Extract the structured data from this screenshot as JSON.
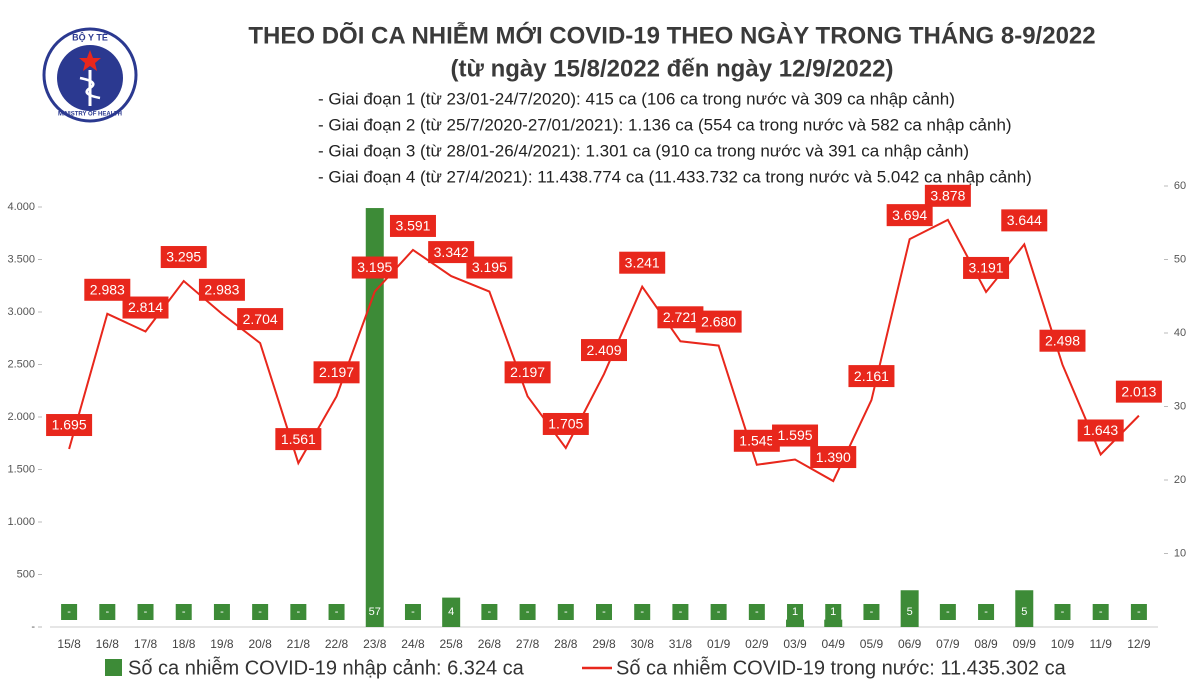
{
  "chart_data": {
    "type": "combo",
    "title": "THEO DÕI CA NHIỄM MỚI COVID-19 THEO NGÀY TRONG THÁNG 8-9/2022",
    "subtitle": "(từ ngày 15/8/2022 đến ngày 12/9/2022)",
    "annotations": [
      "- Giai đoạn 1 (từ 23/01-24/7/2020): 415 ca (106 ca trong nước và 309 ca nhập cảnh)",
      "- Giai đoạn 2 (từ 25/7/2020-27/01/2021): 1.136 ca (554 ca trong nước và 582 ca nhập cảnh)",
      "- Giai đoạn 3 (từ 28/01-26/4/2021): 1.301 ca (910 ca trong nước và 391 ca nhập cảnh)",
      "- Giai đoạn 4 (từ 27/4/2021): 11.438.774 ca (11.433.732 ca trong nước và 5.042 ca nhập cảnh)"
    ],
    "logo_texts": [
      "BỘ Y TẾ",
      "MINISTRY OF HEALTH"
    ],
    "categories": [
      "15/8",
      "16/8",
      "17/8",
      "18/8",
      "19/8",
      "20/8",
      "21/8",
      "22/8",
      "23/8",
      "24/8",
      "25/8",
      "26/8",
      "27/8",
      "28/8",
      "29/8",
      "30/8",
      "31/8",
      "01/9",
      "02/9",
      "03/9",
      "04/9",
      "05/9",
      "06/9",
      "07/9",
      "08/9",
      "09/9",
      "10/9",
      "11/9",
      "12/9"
    ],
    "series": [
      {
        "name": "Số ca nhiễm COVID-19 nhập cảnh: 6.324 ca",
        "type": "bar",
        "axis": "y2",
        "color": "#3d8b37",
        "values": [
          0,
          0,
          0,
          0,
          0,
          0,
          0,
          0,
          57,
          0,
          4,
          0,
          0,
          0,
          0,
          0,
          0,
          0,
          0,
          1,
          1,
          0,
          5,
          0,
          0,
          5,
          0,
          0,
          0
        ],
        "value_labels": [
          "-",
          "-",
          "-",
          "-",
          "-",
          "-",
          "-",
          "-",
          "57",
          "-",
          "4",
          "-",
          "-",
          "-",
          "-",
          "-",
          "-",
          "-",
          "-",
          "1",
          "1",
          "-",
          "5",
          "-",
          "-",
          "5",
          "-",
          "-",
          "-"
        ]
      },
      {
        "name": "Số ca nhiễm COVID-19 trong nước: 11.435.302 ca",
        "type": "line",
        "color": "#e8271c",
        "values": [
          1695,
          2983,
          2814,
          3295,
          2983,
          2704,
          1561,
          2197,
          3195,
          3591,
          3342,
          3195,
          2197,
          1705,
          2409,
          3241,
          2721,
          2680,
          1545,
          1595,
          1390,
          2161,
          3694,
          3878,
          3191,
          3644,
          2498,
          1643,
          2013
        ],
        "value_labels": [
          "1.695",
          "2.983",
          "2.814",
          "3.295",
          "2.983",
          "2.704",
          "1.561",
          "2.197",
          "3.195",
          "3.591",
          "3.342",
          "3.195",
          "2.197",
          "1.705",
          "2.409",
          "3.241",
          "2.721",
          "2.680",
          "1.545",
          "1.595",
          "1.390",
          "2.161",
          "3.694",
          "3.878",
          "3.191",
          "3.644",
          "2.498",
          "1.643",
          "2.013"
        ]
      }
    ],
    "ylim": [
      0,
      4200
    ],
    "yticks": [
      {
        "value": 0,
        "label": "-"
      },
      500,
      {
        "value": 1000,
        "label": "1.000"
      },
      {
        "value": 1500,
        "label": "1.500"
      },
      {
        "value": 2000,
        "label": "2.000"
      },
      {
        "value": 2500,
        "label": "2.500"
      },
      {
        "value": 3000,
        "label": "3.000"
      },
      {
        "value": 3500,
        "label": "3.500"
      },
      {
        "value": 4000,
        "label": "4.000"
      }
    ],
    "y2lim": [
      0,
      60
    ],
    "y2ticks": [
      10,
      20,
      30,
      40,
      50,
      60
    ],
    "grid": false
  }
}
